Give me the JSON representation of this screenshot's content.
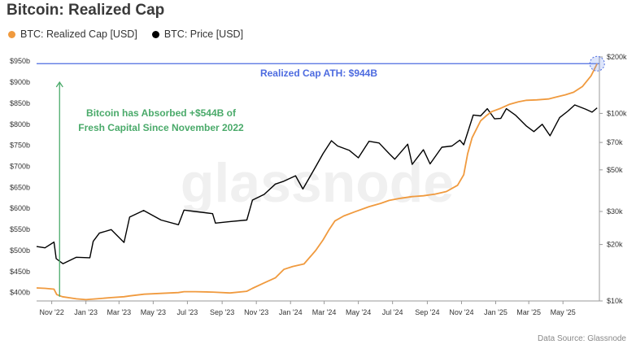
{
  "title": "Bitcoin: Realized Cap",
  "source": "Data Source: Glassnode",
  "watermark": "glassnode",
  "chart_data": {
    "type": "line",
    "title": "Bitcoin: Realized Cap",
    "x_range": [
      "2022-10-05",
      "2025-07-05"
    ],
    "x_tick_labels": [
      "Nov '22",
      "Jan '23",
      "Mar '23",
      "May '23",
      "Jul '23",
      "Sep '23",
      "Nov '23",
      "Jan '24",
      "Mar '24",
      "May '24",
      "Jul '24",
      "Sep '24",
      "Nov '24",
      "Jan '25",
      "Mar '25",
      "May '25"
    ],
    "x_tick_dates": [
      "2022-11-01",
      "2023-01-01",
      "2023-03-01",
      "2023-05-01",
      "2023-07-01",
      "2023-09-01",
      "2023-11-01",
      "2024-01-01",
      "2024-03-01",
      "2024-05-01",
      "2024-07-01",
      "2024-09-01",
      "2024-11-01",
      "2025-01-01",
      "2025-03-01",
      "2025-05-01"
    ],
    "y_left": {
      "range": [
        380,
        960
      ],
      "ticks": [
        400,
        450,
        500,
        550,
        600,
        650,
        700,
        750,
        800,
        850,
        900,
        950
      ],
      "tick_labels": [
        "$400b",
        "$450b",
        "$500b",
        "$550b",
        "$600b",
        "$650b",
        "$700b",
        "$750b",
        "$800b",
        "$850b",
        "$900b",
        "$950b"
      ]
    },
    "y_right": {
      "scale": "log",
      "range": [
        10000,
        200000
      ],
      "ticks": [
        10000,
        20000,
        30000,
        50000,
        70000,
        100000,
        200000
      ],
      "tick_labels": [
        "$10k",
        "$20k",
        "$30k",
        "$50k",
        "$70k",
        "$100k",
        "$200k"
      ]
    },
    "series": [
      {
        "name": "BTC: Realized Cap [USD]",
        "color": "#f09a3e",
        "axis": "left",
        "x": [
          "2022-10-05",
          "2022-10-20",
          "2022-11-05",
          "2022-11-10",
          "2022-11-20",
          "2022-12-15",
          "2023-01-01",
          "2023-01-20",
          "2023-02-15",
          "2023-03-10",
          "2023-03-20",
          "2023-04-15",
          "2023-05-15",
          "2023-06-15",
          "2023-06-25",
          "2023-07-15",
          "2023-08-15",
          "2023-09-15",
          "2023-10-15",
          "2023-10-25",
          "2023-11-15",
          "2023-12-05",
          "2023-12-20",
          "2024-01-05",
          "2024-01-25",
          "2024-02-15",
          "2024-02-28",
          "2024-03-10",
          "2024-03-20",
          "2024-04-05",
          "2024-04-25",
          "2024-05-20",
          "2024-06-10",
          "2024-06-25",
          "2024-07-15",
          "2024-08-05",
          "2024-08-25",
          "2024-09-15",
          "2024-10-05",
          "2024-10-25",
          "2024-11-05",
          "2024-11-12",
          "2024-11-20",
          "2024-12-05",
          "2024-12-15",
          "2024-12-25",
          "2025-01-10",
          "2025-01-25",
          "2025-02-10",
          "2025-02-25",
          "2025-03-15",
          "2025-04-05",
          "2025-04-20",
          "2025-05-05",
          "2025-05-20",
          "2025-06-05",
          "2025-06-20",
          "2025-07-01"
        ],
        "values": [
          411,
          410,
          408,
          395,
          390,
          385,
          383,
          385,
          388,
          390,
          392,
          396,
          398,
          400,
          402,
          402,
          401,
          399,
          403,
          410,
          423,
          435,
          455,
          462,
          468,
          500,
          525,
          550,
          570,
          582,
          592,
          604,
          612,
          619,
          624,
          628,
          630,
          634,
          640,
          655,
          680,
          730,
          768,
          808,
          820,
          830,
          838,
          847,
          853,
          857,
          858,
          860,
          865,
          870,
          876,
          890,
          915,
          944
        ]
      },
      {
        "name": "BTC: Price [USD]",
        "color": "#000000",
        "axis": "right",
        "x": [
          "2022-10-05",
          "2022-10-20",
          "2022-11-05",
          "2022-11-09",
          "2022-11-21",
          "2022-12-15",
          "2023-01-08",
          "2023-01-14",
          "2023-01-25",
          "2023-02-15",
          "2023-03-10",
          "2023-03-20",
          "2023-04-14",
          "2023-05-15",
          "2023-06-15",
          "2023-06-25",
          "2023-07-15",
          "2023-08-15",
          "2023-08-20",
          "2023-09-15",
          "2023-10-15",
          "2023-10-25",
          "2023-11-15",
          "2023-12-05",
          "2023-12-20",
          "2024-01-10",
          "2024-01-23",
          "2024-02-15",
          "2024-02-28",
          "2024-03-14",
          "2024-03-25",
          "2024-04-15",
          "2024-05-01",
          "2024-05-20",
          "2024-06-07",
          "2024-06-25",
          "2024-07-05",
          "2024-07-28",
          "2024-08-05",
          "2024-08-25",
          "2024-09-06",
          "2024-09-27",
          "2024-10-15",
          "2024-10-29",
          "2024-11-05",
          "2024-11-22",
          "2024-12-05",
          "2024-12-17",
          "2024-12-30",
          "2025-01-10",
          "2025-01-20",
          "2025-02-05",
          "2025-02-25",
          "2025-03-10",
          "2025-03-25",
          "2025-04-08",
          "2025-04-25",
          "2025-05-10",
          "2025-05-22",
          "2025-06-10",
          "2025-06-22",
          "2025-07-01"
        ],
        "values": [
          19500,
          19200,
          20600,
          16800,
          15800,
          17100,
          17000,
          20800,
          23000,
          24000,
          20500,
          28000,
          30400,
          27000,
          25500,
          30500,
          30000,
          29200,
          26000,
          26500,
          27000,
          34500,
          37000,
          42000,
          43500,
          46500,
          39500,
          52000,
          61000,
          71500,
          67000,
          63500,
          58000,
          71000,
          69500,
          61000,
          57000,
          68500,
          53500,
          64000,
          53800,
          66000,
          67000,
          72000,
          68000,
          98000,
          97000,
          106000,
          93500,
          94000,
          106000,
          98000,
          85500,
          80000,
          87500,
          76000,
          95000,
          103000,
          111000,
          105500,
          101500,
          107000
        ]
      }
    ],
    "annotations": [
      {
        "text": "Realized Cap ATH: $944B",
        "color": "#4d6be0"
      },
      {
        "text": "Bitcoin has Absorbed +$544B of",
        "color": "#4aaa6a"
      },
      {
        "text": "Fresh Capital Since November 2022",
        "color": "#4aaa6a"
      }
    ],
    "reference_line": {
      "axis": "left",
      "value": 944,
      "color": "#4d6be0"
    },
    "legend": "top-left",
    "grid": false
  }
}
